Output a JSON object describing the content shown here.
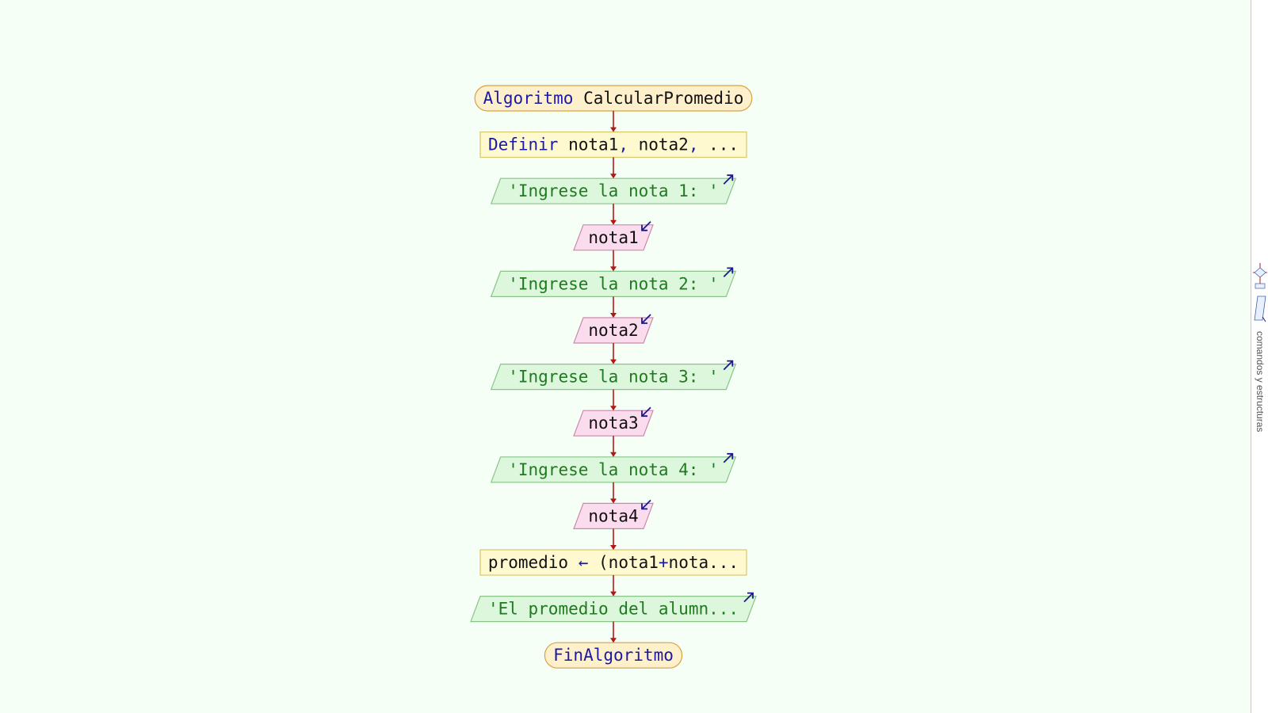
{
  "diagram": {
    "nodes": [
      {
        "kind": "terminal",
        "parts": [
          {
            "t": "Algoritmo",
            "c": "kw"
          },
          {
            "t": " CalcularPromedio",
            "c": "id"
          }
        ]
      },
      {
        "kind": "process",
        "parts": [
          {
            "t": "Definir",
            "c": "kw"
          },
          {
            "t": " nota1",
            "c": "id"
          },
          {
            "t": ",",
            "c": "kw"
          },
          {
            "t": " nota2",
            "c": "id"
          },
          {
            "t": ",",
            "c": "kw"
          },
          {
            "t": " ...",
            "c": "id"
          }
        ]
      },
      {
        "kind": "output",
        "parts": [
          {
            "t": "'Ingrese la nota 1: '",
            "c": "str"
          }
        ]
      },
      {
        "kind": "input",
        "parts": [
          {
            "t": "nota1",
            "c": "id"
          }
        ]
      },
      {
        "kind": "output",
        "parts": [
          {
            "t": "'Ingrese la nota 2: '",
            "c": "str"
          }
        ]
      },
      {
        "kind": "input",
        "parts": [
          {
            "t": "nota2",
            "c": "id"
          }
        ]
      },
      {
        "kind": "output",
        "parts": [
          {
            "t": "'Ingrese la nota 3: '",
            "c": "str"
          }
        ]
      },
      {
        "kind": "input",
        "parts": [
          {
            "t": "nota3",
            "c": "id"
          }
        ]
      },
      {
        "kind": "output",
        "parts": [
          {
            "t": "'Ingrese la nota 4: '",
            "c": "str"
          }
        ]
      },
      {
        "kind": "input",
        "parts": [
          {
            "t": "nota4",
            "c": "id"
          }
        ]
      },
      {
        "kind": "process",
        "parts": [
          {
            "t": "promedio",
            "c": "id"
          },
          {
            "t": " ← ",
            "c": "kw"
          },
          {
            "t": "(",
            "c": "id"
          },
          {
            "t": "nota1",
            "c": "id"
          },
          {
            "t": "+",
            "c": "kw"
          },
          {
            "t": "nota...",
            "c": "id"
          }
        ]
      },
      {
        "kind": "output",
        "parts": [
          {
            "t": "'El promedio del alumn...",
            "c": "str"
          }
        ]
      },
      {
        "kind": "terminal",
        "parts": [
          {
            "t": "FinAlgoritmo",
            "c": "kw"
          }
        ]
      }
    ]
  },
  "colors": {
    "background": "#f5fff6",
    "keyword": "#1a1aa6",
    "identifier": "#111111",
    "string": "#1f7a1f",
    "arrow": "#b01818",
    "io_arrow": "#1a1a8a",
    "terminal_fill": "#fff0cc",
    "terminal_stroke": "#d8a040",
    "process_fill": "#fff9d0",
    "process_stroke": "#d8c66a",
    "output_fill": "#ddf7dd",
    "output_stroke": "#88c488",
    "input_fill": "#fbdcee",
    "input_stroke": "#cc88a8"
  },
  "side_panel": {
    "label": "comandos y estructuras",
    "icons": [
      "flowchart-shapes-icon",
      "io-shapes-icon"
    ]
  }
}
